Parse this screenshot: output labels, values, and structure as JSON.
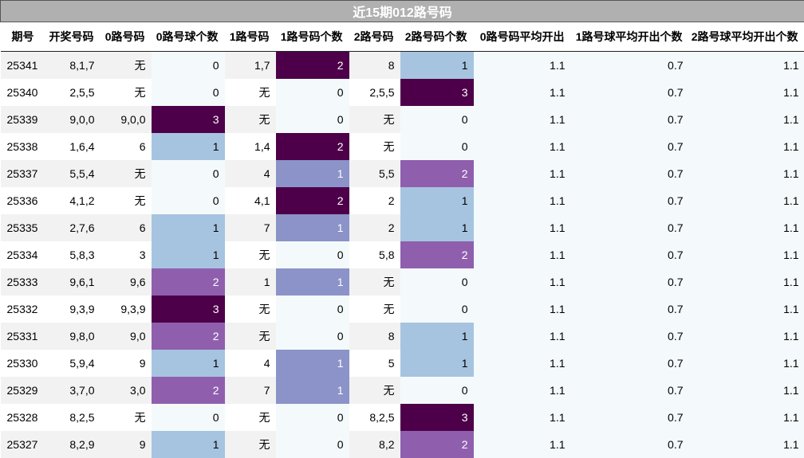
{
  "title": "近15期012路号码",
  "headers": [
    "期号",
    "开奖号码",
    "0路号码",
    "0路号球个数",
    "1路号码",
    "1路号码个数",
    "2路号码",
    "2路号码个数",
    "0路号码平均开出",
    "1路号球平均开出个数",
    "2路号球平均开出个数"
  ],
  "rows": [
    [
      "25341",
      "8,1,7",
      "无",
      "0",
      "1,7",
      "2",
      "8",
      "1",
      "1.1",
      "0.7",
      "1.1"
    ],
    [
      "25340",
      "2,5,5",
      "无",
      "0",
      "无",
      "0",
      "2,5,5",
      "3",
      "1.1",
      "0.7",
      "1.1"
    ],
    [
      "25339",
      "9,0,0",
      "9,0,0",
      "3",
      "无",
      "0",
      "无",
      "0",
      "1.1",
      "0.7",
      "1.1"
    ],
    [
      "25338",
      "1,6,4",
      "6",
      "1",
      "1,4",
      "2",
      "无",
      "0",
      "1.1",
      "0.7",
      "1.1"
    ],
    [
      "25337",
      "5,5,4",
      "无",
      "0",
      "4",
      "1",
      "5,5",
      "2",
      "1.1",
      "0.7",
      "1.1"
    ],
    [
      "25336",
      "4,1,2",
      "无",
      "0",
      "4,1",
      "2",
      "2",
      "1",
      "1.1",
      "0.7",
      "1.1"
    ],
    [
      "25335",
      "2,7,6",
      "6",
      "1",
      "7",
      "1",
      "2",
      "1",
      "1.1",
      "0.7",
      "1.1"
    ],
    [
      "25334",
      "5,8,3",
      "3",
      "1",
      "无",
      "0",
      "5,8",
      "2",
      "1.1",
      "0.7",
      "1.1"
    ],
    [
      "25333",
      "9,6,1",
      "9,6",
      "2",
      "1",
      "1",
      "无",
      "0",
      "1.1",
      "0.7",
      "1.1"
    ],
    [
      "25332",
      "9,3,9",
      "9,3,9",
      "3",
      "无",
      "0",
      "无",
      "0",
      "1.1",
      "0.7",
      "1.1"
    ],
    [
      "25331",
      "9,8,0",
      "9,0",
      "2",
      "无",
      "0",
      "8",
      "1",
      "1.1",
      "0.7",
      "1.1"
    ],
    [
      "25330",
      "5,9,4",
      "9",
      "1",
      "4",
      "1",
      "5",
      "1",
      "1.1",
      "0.7",
      "1.1"
    ],
    [
      "25329",
      "3,7,0",
      "3,0",
      "2",
      "7",
      "1",
      "无",
      "0",
      "1.1",
      "0.7",
      "1.1"
    ],
    [
      "25328",
      "8,2,5",
      "无",
      "0",
      "无",
      "0",
      "8,2,5",
      "3",
      "1.1",
      "0.7",
      "1.1"
    ],
    [
      "25327",
      "8,2,9",
      "9",
      "1",
      "无",
      "0",
      "8,2",
      "2",
      "1.1",
      "0.7",
      "1.1"
    ]
  ],
  "colors": {
    "heat_0": "#f4fafb",
    "heat_1": "#a6c4df",
    "heat_2": "#8f5fae",
    "heat_3": "#4d0049",
    "col1_heat_1": "#8b93c8",
    "col1_heat_2": "#4d0049",
    "title_bg": "#b0b0b0"
  }
}
